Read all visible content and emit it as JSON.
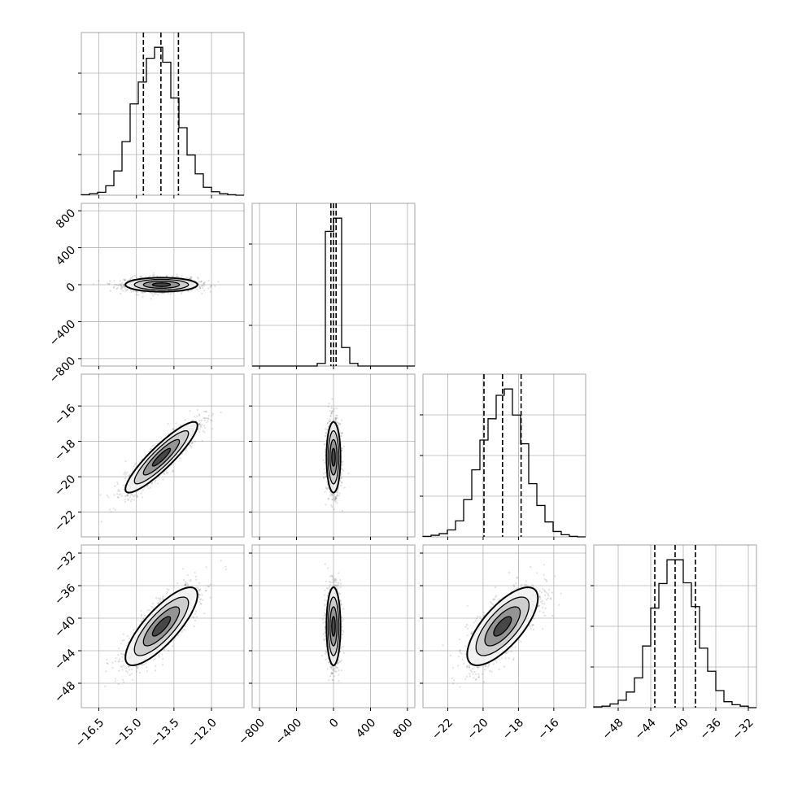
{
  "chart_data": {
    "type": "corner",
    "grid": true,
    "colors": {
      "histogram": "#000000",
      "contour_line": "#000000",
      "scatter_point": "#555555",
      "grid": "#b0b0b0"
    },
    "parameters": [
      {
        "index": 0,
        "range": [
          -17.2,
          -10.7
        ],
        "ticks": [
          -16.5,
          -15.0,
          -13.5,
          -12.0
        ],
        "tick_labels": [
          "−16.5",
          "−15.0",
          "−13.5",
          "−12.0"
        ],
        "mean": -14.0,
        "sd": 0.72
      },
      {
        "index": 1,
        "range": [
          -880,
          880
        ],
        "ticks": [
          -800,
          -400,
          0,
          400,
          800
        ],
        "tick_labels": [
          "−800",
          "−400",
          "0",
          "400",
          "800"
        ],
        "mean": 0,
        "sd": 38
      },
      {
        "index": 2,
        "range": [
          -23.4,
          -14.2
        ],
        "ticks": [
          -22,
          -20,
          -18,
          -16
        ],
        "tick_labels": [
          "−22",
          "−20",
          "−18",
          "−16"
        ],
        "mean": -18.9,
        "sd": 1.0
      },
      {
        "index": 3,
        "range": [
          -51,
          -31
        ],
        "ticks": [
          -48,
          -44,
          -40,
          -36,
          -32
        ],
        "tick_labels": [
          "−48",
          "−44",
          "−40",
          "−36",
          "−32"
        ],
        "mean": -41.0,
        "sd": 2.4
      }
    ],
    "histograms": [
      {
        "param": 0,
        "quantiles": [
          -14.72,
          -14.02,
          -13.32
        ],
        "bins": [
          -17.2,
          -16.875,
          -16.55,
          -16.225,
          -15.9,
          -15.575,
          -15.25,
          -14.925,
          -14.6,
          -14.275,
          -13.95,
          -13.625,
          -13.3,
          -12.975,
          -12.65,
          -12.325,
          -12.0,
          -11.675,
          -11.35,
          -11.025,
          -10.7
        ],
        "counts": [
          1,
          3,
          6,
          19,
          49,
          108,
          184,
          228,
          276,
          298,
          268,
          196,
          136,
          81,
          43,
          16,
          7,
          3,
          1,
          0
        ]
      },
      {
        "param": 1,
        "quantiles": [
          -28,
          0,
          28
        ],
        "bins": [
          -880,
          -792,
          -704,
          -616,
          -528,
          -440,
          -352,
          -264,
          -176,
          -88,
          0,
          88,
          176,
          264,
          352,
          440,
          528,
          616,
          704,
          792,
          880
        ],
        "counts": [
          0,
          0,
          0,
          0,
          0,
          0,
          0,
          0,
          1,
          51,
          56,
          7,
          1,
          0,
          0,
          0,
          0,
          0,
          0,
          0
        ]
      },
      {
        "param": 2,
        "quantiles": [
          -19.95,
          -18.9,
          -17.85
        ],
        "bins": [
          -23.4,
          -22.94,
          -22.48,
          -22.02,
          -21.56,
          -21.1,
          -20.64,
          -20.18,
          -19.72,
          -19.26,
          -18.8,
          -18.34,
          -17.88,
          -17.42,
          -16.96,
          -16.5,
          -16.04,
          -15.58,
          -15.12,
          -14.66,
          -14.2
        ],
        "counts": [
          1,
          3,
          6,
          13,
          30,
          70,
          126,
          182,
          222,
          266,
          278,
          229,
          175,
          100,
          59,
          28,
          10,
          4,
          1,
          0
        ]
      },
      {
        "param": 3,
        "quantiles": [
          -43.5,
          -41.0,
          -38.5
        ],
        "bins": [
          -51,
          -50,
          -49,
          -48,
          -47,
          -46,
          -45,
          -44,
          -43,
          -42,
          -41,
          -40,
          -39,
          -38,
          -37,
          -36,
          -35,
          -34,
          -33,
          -32,
          -31
        ],
        "counts": [
          1,
          2,
          5,
          10,
          21,
          40,
          83,
          134,
          167,
          199,
          199,
          168,
          136,
          80,
          49,
          23,
          8,
          4,
          2,
          0
        ]
      }
    ],
    "pairs": [
      {
        "x_param": 0,
        "y_param": 1,
        "corr": 0.0
      },
      {
        "x_param": 0,
        "y_param": 2,
        "corr": 0.9
      },
      {
        "x_param": 1,
        "y_param": 2,
        "corr": 0.0
      },
      {
        "x_param": 0,
        "y_param": 3,
        "corr": 0.8
      },
      {
        "x_param": 1,
        "y_param": 3,
        "corr": 0.0
      },
      {
        "x_param": 2,
        "y_param": 3,
        "corr": 0.72
      }
    ]
  }
}
